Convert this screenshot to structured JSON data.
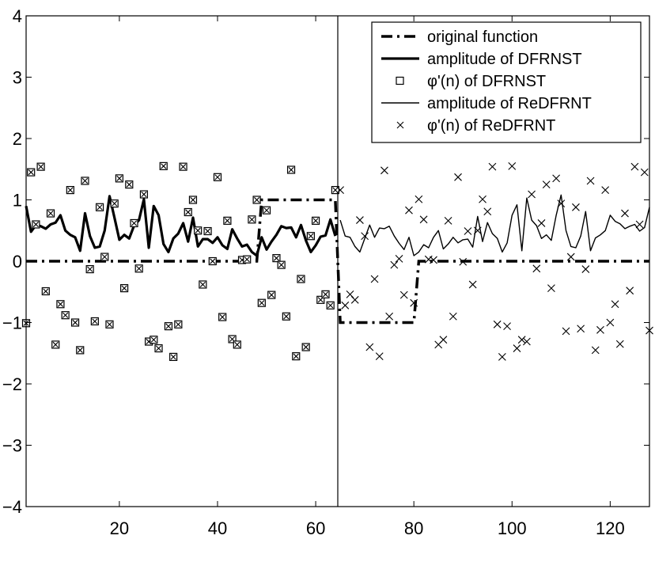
{
  "chart_data": {
    "type": "line",
    "title": "",
    "xlabel": "",
    "ylabel": "",
    "xlim": [
      1,
      128
    ],
    "ylim": [
      -4,
      4
    ],
    "xticks": [
      20,
      40,
      60,
      80,
      100,
      120
    ],
    "yticks": [
      -4,
      -3,
      -2,
      -1,
      0,
      1,
      2,
      3,
      4
    ],
    "xtick_labels": [
      "20",
      "40",
      "60",
      "80",
      "100",
      "120"
    ],
    "ytick_labels": [
      "−4",
      "−3",
      "−2",
      "−1",
      "0",
      "1",
      "2",
      "3",
      "4"
    ],
    "grid": false,
    "vertical_line_x": 64.5,
    "legend_position": "top-right",
    "colors": {
      "all": "#000000"
    },
    "series": [
      {
        "name": "original function",
        "style": "dash-dot thick",
        "x": [
          1,
          48,
          49,
          64,
          65,
          80,
          81,
          128
        ],
        "y": [
          0,
          0,
          1,
          1,
          -1,
          -1,
          0,
          0
        ]
      },
      {
        "name": "amplitude of DFRNST",
        "style": "solid thick",
        "x_start": 1,
        "y": [
          0.9,
          0.48,
          0.59,
          0.57,
          0.53,
          0.6,
          0.63,
          0.75,
          0.5,
          0.43,
          0.39,
          0.17,
          0.78,
          0.41,
          0.22,
          0.24,
          0.5,
          1.06,
          0.71,
          0.35,
          0.43,
          0.37,
          0.58,
          0.67,
          1.01,
          0.22,
          0.9,
          0.75,
          0.28,
          0.15,
          0.37,
          0.45,
          0.62,
          0.32,
          0.71,
          0.24,
          0.36,
          0.36,
          0.3,
          0.39,
          0.26,
          0.2,
          0.52,
          0.37,
          0.24,
          0.27,
          0.15,
          0.09,
          0.39,
          0.19,
          0.32,
          0.43,
          0.57,
          0.54,
          0.55,
          0.39,
          0.59,
          0.34,
          0.15,
          0.26,
          0.4,
          0.42,
          0.68,
          0.41
        ]
      },
      {
        "name": "φ'(n) of DFRNST",
        "style": "square markers",
        "x_start": 1,
        "y": [
          -1.01,
          1.45,
          0.6,
          1.54,
          -0.49,
          0.78,
          -1.36,
          -0.7,
          -0.88,
          1.16,
          -1.0,
          -1.45,
          1.31,
          -0.13,
          -0.98,
          0.88,
          0.07,
          -1.03,
          0.94,
          1.35,
          -0.44,
          1.25,
          0.62,
          -0.12,
          1.09,
          -1.31,
          -1.28,
          -1.42,
          1.55,
          -1.06,
          -1.56,
          -1.03,
          1.54,
          0.8,
          1.0,
          0.5,
          -0.38,
          0.49,
          0,
          1.37,
          -0.91,
          0.66,
          -1.27,
          -1.36,
          0.02,
          0.03,
          0.68,
          1.0,
          -0.68,
          0.83,
          -0.55,
          0.05,
          -0.06,
          -0.9,
          1.49,
          -1.55,
          -0.29,
          -1.4,
          0.41,
          0.66,
          -0.63,
          -0.54,
          -0.72,
          1.16
        ]
      },
      {
        "name": "amplitude of ReDFRNT",
        "style": "solid thin",
        "x_start": 65,
        "y": [
          0.67,
          0.41,
          0.39,
          0.24,
          0.15,
          0.37,
          0.59,
          0.39,
          0.54,
          0.53,
          0.57,
          0.41,
          0.29,
          0.19,
          0.39,
          0.09,
          0.15,
          0.27,
          0.22,
          0.39,
          0.5,
          0.2,
          0.28,
          0.39,
          0.3,
          0.35,
          0.36,
          0.23,
          0.73,
          0.32,
          0.63,
          0.45,
          0.37,
          0.15,
          0.3,
          0.75,
          0.92,
          0.17,
          1.03,
          0.67,
          0.58,
          0.37,
          0.43,
          0.34,
          0.75,
          1.08,
          0.5,
          0.24,
          0.22,
          0.41,
          0.81,
          0.17,
          0.38,
          0.43,
          0.5,
          0.75,
          0.65,
          0.61,
          0.53,
          0.57,
          0.6,
          0.49,
          0.55,
          0.88
        ]
      },
      {
        "name": "φ'(n) of ReDFRNT",
        "style": "x markers",
        "x_start": 65,
        "y": [
          1.16,
          -0.72,
          -0.54,
          -0.63,
          0.67,
          0.41,
          -1.4,
          -0.29,
          -1.55,
          1.48,
          -0.9,
          -0.06,
          0.04,
          -0.55,
          0.83,
          -0.68,
          1.01,
          0.68,
          0.03,
          0.02,
          -1.36,
          -1.28,
          0.66,
          -0.9,
          1.37,
          -0.01,
          0.49,
          -0.38,
          0.5,
          1.01,
          0.81,
          1.54,
          -1.03,
          -1.56,
          -1.06,
          1.55,
          -1.42,
          -1.28,
          -1.31,
          1.09,
          -0.12,
          0.62,
          1.25,
          -0.44,
          1.35,
          0.94,
          -1.14,
          0.07,
          0.88,
          -1.1,
          -0.13,
          1.31,
          -1.45,
          -1.12,
          1.16,
          -1.0,
          -0.7,
          -1.35,
          0.78,
          -0.48,
          1.54,
          0.6,
          1.45,
          -1.13
        ]
      }
    ]
  }
}
